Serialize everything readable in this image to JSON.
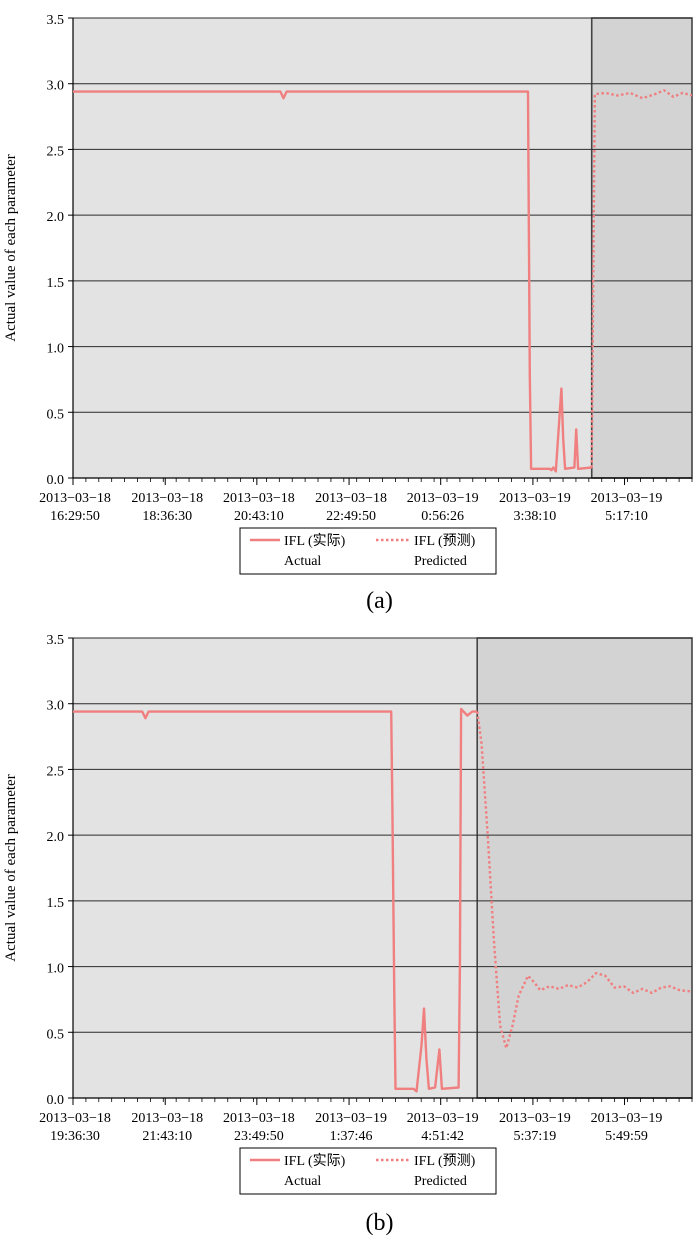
{
  "colors": {
    "plot_bg": "#e3e3e3",
    "forecast_bg": "#d3d3d3",
    "grid": "#2b2b2b",
    "series": "#f07f80"
  },
  "chart_data": [
    {
      "type": "line",
      "caption": "(a)",
      "ylabel": "Actual value of each parameter",
      "ylim": [
        0,
        3.5
      ],
      "yticks": [
        "0.0",
        "0.5",
        "1.0",
        "1.5",
        "2.0",
        "2.5",
        "3.0",
        "3.5"
      ],
      "grid": true,
      "xlim": [
        0,
        100
      ],
      "xticks": [
        {
          "t": 0,
          "line1": "2013−03−18",
          "line2": "16:29:50"
        },
        {
          "t": 14.9,
          "line1": "2013−03−18",
          "line2": "18:36:30"
        },
        {
          "t": 29.7,
          "line1": "2013−03−18",
          "line2": "20:43:10"
        },
        {
          "t": 44.6,
          "line1": "2013−03−18",
          "line2": "22:49:50"
        },
        {
          "t": 59.4,
          "line1": "2013−03−19",
          "line2": "0:56:26"
        },
        {
          "t": 74.3,
          "line1": "2013−03−19",
          "line2": "3:38:10"
        },
        {
          "t": 89.1,
          "line1": "2013−03−19",
          "line2": "5:17:10"
        }
      ],
      "forecast_start": 83.8,
      "legend": {
        "placement": "bottom",
        "actual_name": "IFL (实际)",
        "actual_sub": "Actual",
        "predicted_name": "IFL (预测)",
        "predicted_sub": "Predicted"
      },
      "actual": [
        [
          0,
          2.94
        ],
        [
          33.5,
          2.94
        ],
        [
          34,
          2.89
        ],
        [
          34.5,
          2.94
        ],
        [
          73.5,
          2.94
        ],
        [
          73.6,
          2.2
        ],
        [
          73.8,
          0.78
        ],
        [
          74,
          0.07
        ],
        [
          77,
          0.07
        ],
        [
          77.3,
          0.06
        ],
        [
          77.6,
          0.08
        ],
        [
          78,
          0.05
        ],
        [
          78.5,
          0.4
        ],
        [
          78.9,
          0.68
        ],
        [
          79.2,
          0.3
        ],
        [
          79.5,
          0.07
        ],
        [
          81,
          0.08
        ],
        [
          81.3,
          0.37
        ],
        [
          81.6,
          0.07
        ],
        [
          83.8,
          0.08
        ]
      ],
      "predicted": [
        [
          83.8,
          0.08
        ],
        [
          84.3,
          2.92
        ],
        [
          86,
          2.93
        ],
        [
          88,
          2.91
        ],
        [
          90,
          2.93
        ],
        [
          92,
          2.89
        ],
        [
          94,
          2.92
        ],
        [
          95.5,
          2.95
        ],
        [
          97,
          2.9
        ],
        [
          98.5,
          2.93
        ],
        [
          100,
          2.91
        ]
      ]
    },
    {
      "type": "line",
      "caption": "(b)",
      "ylabel": "Actual value of each parameter",
      "ylim": [
        0,
        3.5
      ],
      "yticks": [
        "0.0",
        "0.5",
        "1.0",
        "1.5",
        "2.0",
        "2.5",
        "3.0",
        "3.5"
      ],
      "grid": true,
      "xlim": [
        0,
        100
      ],
      "xticks": [
        {
          "t": 0,
          "line1": "2013−03−18",
          "line2": "19:36:30"
        },
        {
          "t": 14.9,
          "line1": "2013−03−18",
          "line2": "21:43:10"
        },
        {
          "t": 29.7,
          "line1": "2013−03−18",
          "line2": "23:49:50"
        },
        {
          "t": 44.6,
          "line1": "2013−03−19",
          "line2": "1:37:46"
        },
        {
          "t": 59.4,
          "line1": "2013−03−19",
          "line2": "4:51:42"
        },
        {
          "t": 74.3,
          "line1": "2013−03−19",
          "line2": "5:37:19"
        },
        {
          "t": 89.1,
          "line1": "2013−03−19",
          "line2": "5:49:59"
        }
      ],
      "forecast_start": 65.3,
      "legend": {
        "placement": "bottom",
        "actual_name": "IFL (实际)",
        "actual_sub": "Actual",
        "predicted_name": "IFL (预测)",
        "predicted_sub": "Predicted"
      },
      "actual": [
        [
          0,
          2.94
        ],
        [
          11.2,
          2.94
        ],
        [
          11.7,
          2.89
        ],
        [
          12.2,
          2.94
        ],
        [
          51.4,
          2.94
        ],
        [
          51.6,
          2.2
        ],
        [
          51.9,
          0.78
        ],
        [
          52.1,
          0.07
        ],
        [
          55,
          0.07
        ],
        [
          55.5,
          0.05
        ],
        [
          56.3,
          0.4
        ],
        [
          56.7,
          0.68
        ],
        [
          57.1,
          0.3
        ],
        [
          57.5,
          0.07
        ],
        [
          58.5,
          0.08
        ],
        [
          59.2,
          0.37
        ],
        [
          59.6,
          0.07
        ],
        [
          62.3,
          0.08
        ],
        [
          62.5,
          1.0
        ],
        [
          62.7,
          2.96
        ],
        [
          63.7,
          2.91
        ],
        [
          64.5,
          2.94
        ],
        [
          65.3,
          2.94
        ]
      ],
      "predicted": [
        [
          65.3,
          2.94
        ],
        [
          66,
          2.7
        ],
        [
          67,
          2.0
        ],
        [
          68,
          1.2
        ],
        [
          69,
          0.55
        ],
        [
          70,
          0.38
        ],
        [
          71,
          0.55
        ],
        [
          72,
          0.78
        ],
        [
          73.5,
          0.93
        ],
        [
          74.5,
          0.88
        ],
        [
          75.5,
          0.82
        ],
        [
          77,
          0.85
        ],
        [
          78.5,
          0.83
        ],
        [
          80,
          0.86
        ],
        [
          81.5,
          0.84
        ],
        [
          83,
          0.88
        ],
        [
          84.5,
          0.95
        ],
        [
          86,
          0.93
        ],
        [
          87.5,
          0.84
        ],
        [
          89,
          0.85
        ],
        [
          90.5,
          0.8
        ],
        [
          92,
          0.83
        ],
        [
          93.5,
          0.8
        ],
        [
          95,
          0.84
        ],
        [
          96.5,
          0.85
        ],
        [
          98,
          0.82
        ],
        [
          100,
          0.81
        ]
      ]
    }
  ]
}
